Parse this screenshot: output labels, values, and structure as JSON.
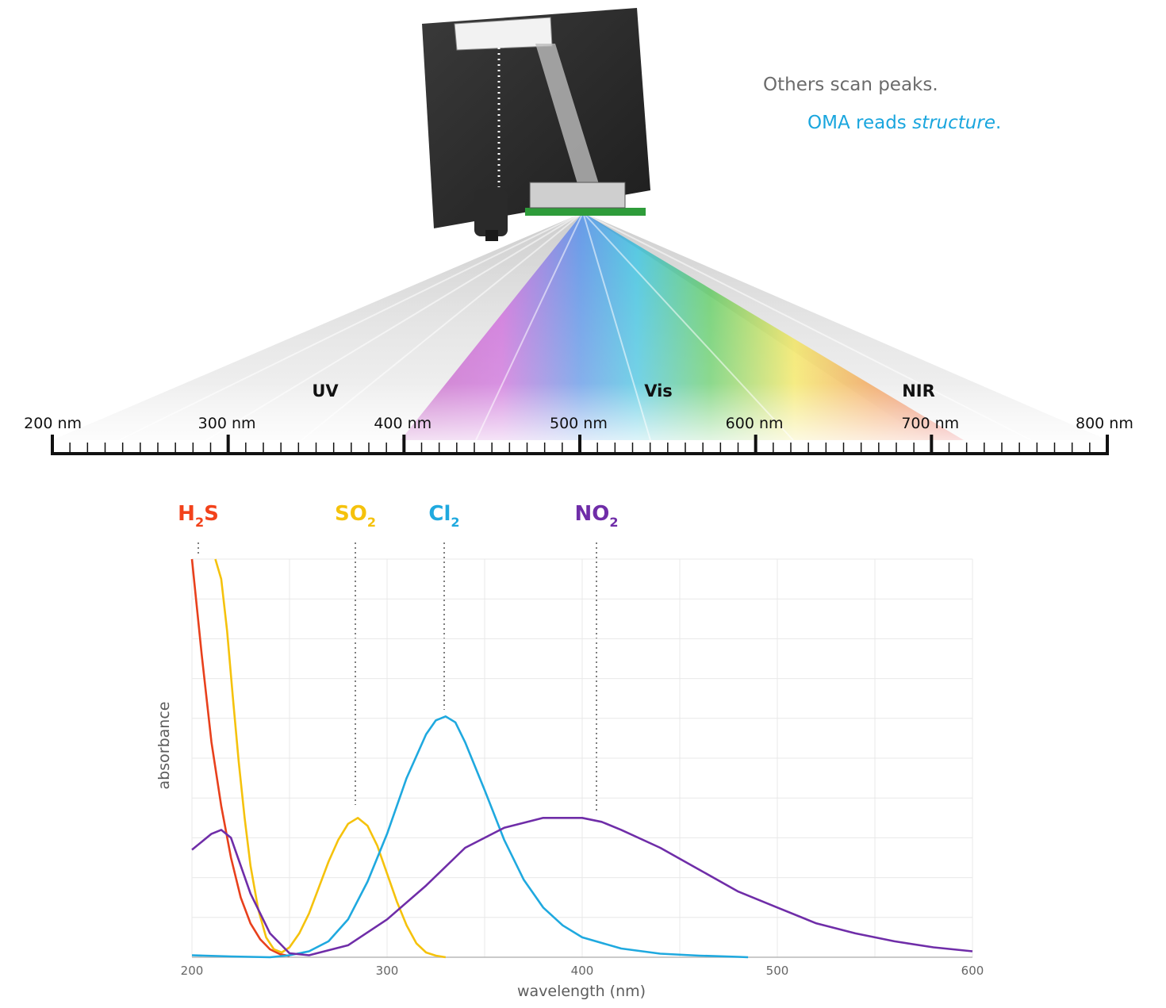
{
  "tagline": {
    "line1": "Others scan peaks.",
    "line2_prefix": "OMA reads ",
    "line2_emphasis": "structure",
    "line2_suffix": "."
  },
  "spectrum_scale": {
    "band_labels": [
      "UV",
      "Vis",
      "NIR"
    ],
    "tick_labels": [
      "200 nm",
      "300 nm",
      "400 nm",
      "500 nm",
      "600 nm",
      "700 nm",
      "800 nm"
    ]
  },
  "gas_labels": [
    {
      "base": "H",
      "sub": "2",
      "tail": "S",
      "color": "#f2421b"
    },
    {
      "base": "SO",
      "sub": "2",
      "tail": "",
      "color": "#f5c20c"
    },
    {
      "base": "Cl",
      "sub": "2",
      "tail": "",
      "color": "#1fa9df"
    },
    {
      "base": "NO",
      "sub": "2",
      "tail": "",
      "color": "#6f2da8"
    }
  ],
  "chart_data": {
    "type": "line",
    "xlabel": "wavelength (nm)",
    "ylabel": "absorbance",
    "xlim": [
      200,
      600
    ],
    "ylim": [
      0,
      10
    ],
    "xticks": [
      200,
      300,
      400,
      500,
      600
    ],
    "grid": true,
    "series": [
      {
        "name": "H2S",
        "color": "#e8401c",
        "x": [
          200,
          205,
          210,
          215,
          220,
          225,
          230,
          235,
          240,
          245,
          250
        ],
        "y": [
          10,
          7.6,
          5.4,
          3.8,
          2.5,
          1.5,
          0.85,
          0.45,
          0.2,
          0.08,
          0.03
        ]
      },
      {
        "name": "SO2",
        "color": "#f5c20c",
        "x": [
          212,
          215,
          218,
          221,
          224,
          227,
          230,
          234,
          238,
          242,
          246,
          250,
          255,
          260,
          265,
          270,
          275,
          280,
          285,
          290,
          295,
          300,
          305,
          310,
          315,
          320,
          325,
          330
        ],
        "y": [
          10,
          9.5,
          8.2,
          6.5,
          4.9,
          3.5,
          2.3,
          1.2,
          0.5,
          0.2,
          0.12,
          0.25,
          0.6,
          1.1,
          1.75,
          2.4,
          2.95,
          3.35,
          3.5,
          3.3,
          2.8,
          2.1,
          1.4,
          0.8,
          0.35,
          0.12,
          0.04,
          0.0
        ]
      },
      {
        "name": "Cl2",
        "color": "#1fa9df",
        "x": [
          200,
          220,
          240,
          250,
          260,
          270,
          280,
          290,
          300,
          310,
          320,
          325,
          330,
          335,
          340,
          350,
          360,
          370,
          380,
          390,
          400,
          420,
          440,
          460,
          480,
          485
        ],
        "y": [
          0.05,
          0.02,
          0.0,
          0.05,
          0.15,
          0.4,
          0.95,
          1.9,
          3.1,
          4.5,
          5.6,
          5.95,
          6.05,
          5.9,
          5.4,
          4.2,
          2.95,
          1.95,
          1.25,
          0.8,
          0.5,
          0.22,
          0.09,
          0.04,
          0.01,
          0.0
        ]
      },
      {
        "name": "NO2",
        "color": "#6f2da8",
        "x": [
          200,
          210,
          215,
          220,
          230,
          240,
          250,
          260,
          280,
          300,
          320,
          340,
          360,
          380,
          400,
          410,
          420,
          440,
          460,
          480,
          500,
          520,
          540,
          560,
          580,
          600
        ],
        "y": [
          2.7,
          3.1,
          3.2,
          3.0,
          1.6,
          0.6,
          0.1,
          0.05,
          0.3,
          0.95,
          1.8,
          2.75,
          3.25,
          3.5,
          3.5,
          3.4,
          3.2,
          2.75,
          2.2,
          1.65,
          1.25,
          0.85,
          0.6,
          0.4,
          0.25,
          0.15
        ]
      }
    ]
  }
}
